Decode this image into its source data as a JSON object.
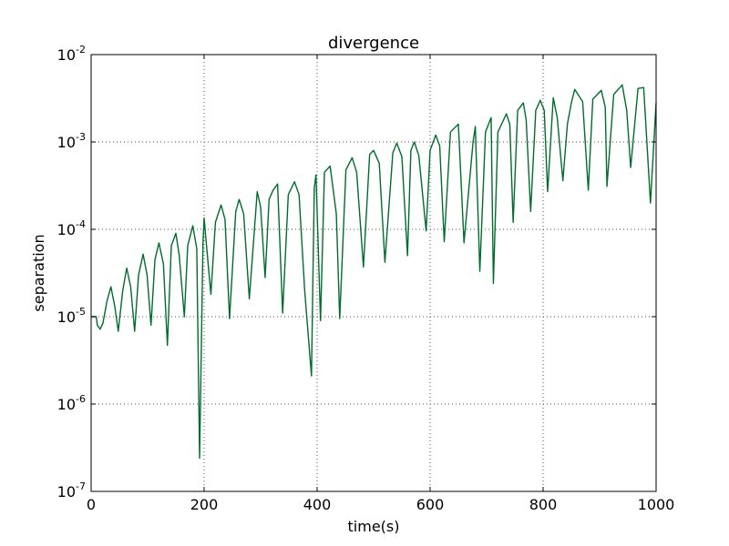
{
  "chart_data": {
    "type": "line",
    "title": "divergence",
    "xlabel": "time(s)",
    "ylabel": "separation",
    "xlim": [
      0,
      1000
    ],
    "ylim": [
      1e-07,
      0.01
    ],
    "y_scale": "log",
    "grid": true,
    "x_ticks": [
      "0",
      "200",
      "400",
      "600",
      "800",
      "1000"
    ],
    "x_tick_values": [
      0,
      200,
      400,
      600,
      800,
      1000
    ],
    "y_ticks": [
      {
        "base": "10",
        "exp": "-7",
        "value": 1e-07
      },
      {
        "base": "10",
        "exp": "-6",
        "value": 1e-06
      },
      {
        "base": "10",
        "exp": "-5",
        "value": 1e-05
      },
      {
        "base": "10",
        "exp": "-4",
        "value": 0.0001
      },
      {
        "base": "10",
        "exp": "-3",
        "value": 0.001
      },
      {
        "base": "10",
        "exp": "-2",
        "value": 0.01
      }
    ],
    "colors": {
      "line": "#006d2c",
      "grid": "#555555",
      "axes": "#000000"
    },
    "series": [
      {
        "x": [
          0,
          6,
          9,
          11,
          14,
          16,
          21,
          28,
          35,
          42,
          48,
          56,
          63,
          70,
          77,
          84,
          92,
          99,
          106,
          113,
          120,
          128,
          135,
          142,
          150,
          156,
          165,
          171,
          180,
          187,
          192,
          198,
          200,
          203,
          212,
          220,
          230,
          237,
          245,
          256,
          262,
          270,
          280,
          294,
          300,
          308,
          315,
          322,
          330,
          339,
          349,
          360,
          368,
          378,
          390,
          395,
          398,
          406,
          413,
          423,
          434,
          440,
          451,
          462,
          470,
          482,
          493,
          500,
          510,
          520,
          534,
          541,
          550,
          560,
          566,
          572,
          580,
          593,
          600,
          610,
          617,
          625,
          636,
          650,
          660,
          676,
          680,
          688,
          698,
          708,
          712,
          720,
          735,
          741,
          747,
          755,
          765,
          770,
          778,
          787,
          795,
          802,
          808,
          818,
          825,
          835,
          843,
          850,
          856,
          870,
          880,
          888,
          903,
          910,
          913,
          925,
          940,
          948,
          955,
          968,
          978,
          990,
          1000
        ],
        "y": [
          1e-05,
          1e-05,
          1e-05,
          8e-06,
          7.5e-06,
          7.2e-06,
          8.5e-06,
          1.5e-05,
          2.2e-05,
          1.3e-05,
          6.8e-06,
          2e-05,
          3.6e-05,
          2.2e-05,
          6.8e-06,
          3e-05,
          5.2e-05,
          3e-05,
          8e-06,
          4.5e-05,
          7e-05,
          4e-05,
          4.7e-06,
          6.5e-05,
          9e-05,
          5e-05,
          1e-05,
          6.5e-05,
          0.00011,
          6e-05,
          2.4e-07,
          7e-05,
          0.000135,
          8e-05,
          1.8e-05,
          0.00012,
          0.00019,
          0.00013,
          9.5e-06,
          0.00016,
          0.00022,
          0.00015,
          1.6e-05,
          0.00027,
          0.00018,
          2.8e-05,
          0.00022,
          0.00028,
          0.00033,
          1.1e-05,
          0.00025,
          0.00035,
          0.00025,
          2e-05,
          2.1e-06,
          0.0003,
          0.00042,
          9e-06,
          0.00045,
          0.00053,
          0.00015,
          9.5e-06,
          0.00048,
          0.00066,
          0.00045,
          3.7e-05,
          0.00072,
          0.0008,
          0.00057,
          4.2e-05,
          0.00075,
          0.00097,
          0.00068,
          5e-05,
          0.0008,
          0.001,
          0.0007,
          9.6e-05,
          0.0008,
          0.0012,
          0.0009,
          7.2e-05,
          0.0013,
          0.0016,
          7e-05,
          0.001,
          0.0015,
          3.3e-05,
          0.0013,
          0.0019,
          2.4e-05,
          0.0013,
          0.0021,
          0.0016,
          0.00012,
          0.0023,
          0.0028,
          0.0018,
          0.00016,
          0.0023,
          0.003,
          0.0023,
          0.00027,
          0.0032,
          0.0019,
          0.00036,
          0.0016,
          0.0028,
          0.004,
          0.0029,
          0.00028,
          0.0031,
          0.0039,
          0.0025,
          0.00031,
          0.0035,
          0.0045,
          0.0023,
          0.00051,
          0.0041,
          0.0042,
          0.0002,
          0.0028
        ]
      }
    ]
  }
}
